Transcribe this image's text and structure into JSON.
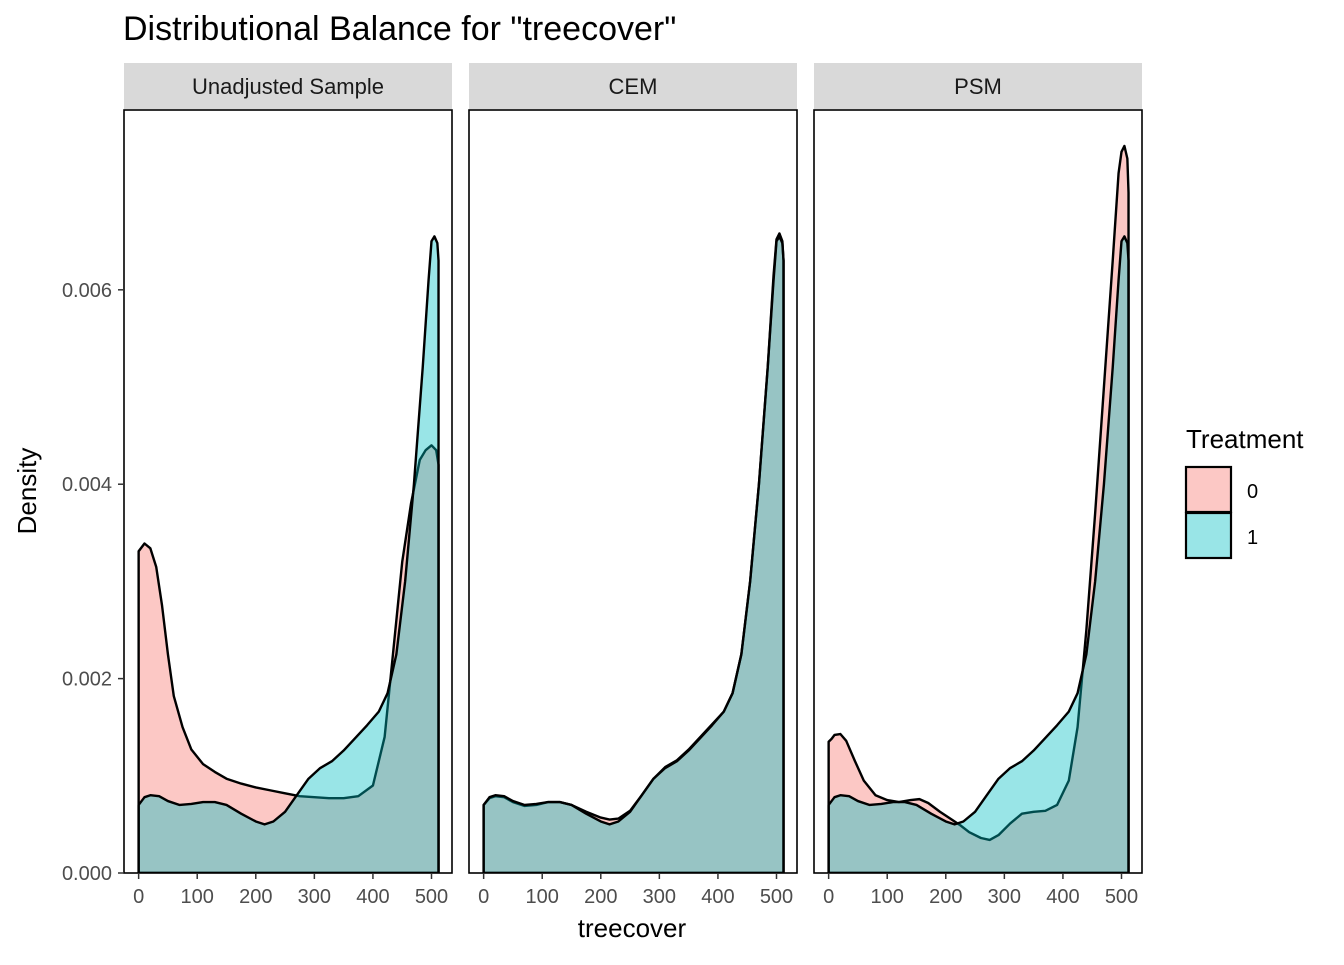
{
  "chart_data": {
    "type": "area",
    "title": "Distributional Balance for \"treecover\"",
    "xlabel": "treecover",
    "ylabel": "Density",
    "xlim": [
      -25,
      535
    ],
    "ylim": [
      0,
      0.00785
    ],
    "x_ticks": [
      0,
      100,
      200,
      300,
      400,
      500
    ],
    "x_tick_labels": [
      "0",
      "100",
      "200",
      "300",
      "400",
      "500"
    ],
    "y_ticks": [
      0,
      0.002,
      0.004,
      0.006
    ],
    "y_tick_labels": [
      "0.000",
      "0.002",
      "0.004",
      "0.006"
    ],
    "grid": false,
    "legend": {
      "title": "Treatment",
      "position": "right",
      "entries": [
        {
          "label": "0",
          "color": "#F8766D"
        },
        {
          "label": "1",
          "color": "#00BFC4"
        }
      ]
    },
    "panels": [
      {
        "label": "Unadjusted Sample",
        "series": [
          {
            "name": "0",
            "color": "#F8766D",
            "points": [
              [
                0,
                0.00331
              ],
              [
                5,
                0.00335
              ],
              [
                10,
                0.00339
              ],
              [
                20,
                0.00334
              ],
              [
                30,
                0.00315
              ],
              [
                40,
                0.00275
              ],
              [
                50,
                0.00225
              ],
              [
                60,
                0.00182
              ],
              [
                75,
                0.0015
              ],
              [
                90,
                0.00127
              ],
              [
                110,
                0.00112
              ],
              [
                130,
                0.00104
              ],
              [
                150,
                0.00097
              ],
              [
                175,
                0.00092
              ],
              [
                200,
                0.00088
              ],
              [
                225,
                0.00085
              ],
              [
                250,
                0.00082
              ],
              [
                275,
                0.00079
              ],
              [
                300,
                0.00078
              ],
              [
                325,
                0.00077
              ],
              [
                350,
                0.00077
              ],
              [
                375,
                0.00079
              ],
              [
                400,
                0.0009
              ],
              [
                420,
                0.0014
              ],
              [
                435,
                0.0023
              ],
              [
                450,
                0.0032
              ],
              [
                465,
                0.0038
              ],
              [
                480,
                0.00425
              ],
              [
                490,
                0.00435
              ],
              [
                500,
                0.0044
              ],
              [
                508,
                0.00435
              ],
              [
                512,
                0.0042
              ]
            ]
          },
          {
            "name": "1",
            "color": "#00BFC4",
            "points": [
              [
                0,
                0.0007
              ],
              [
                10,
                0.00078
              ],
              [
                20,
                0.0008
              ],
              [
                35,
                0.00079
              ],
              [
                50,
                0.00074
              ],
              [
                70,
                0.0007
              ],
              [
                90,
                0.00071
              ],
              [
                110,
                0.00073
              ],
              [
                130,
                0.00073
              ],
              [
                150,
                0.0007
              ],
              [
                175,
                0.00061
              ],
              [
                200,
                0.00053
              ],
              [
                215,
                0.0005
              ],
              [
                230,
                0.00053
              ],
              [
                250,
                0.00063
              ],
              [
                270,
                0.0008
              ],
              [
                290,
                0.00097
              ],
              [
                310,
                0.00108
              ],
              [
                330,
                0.00115
              ],
              [
                350,
                0.00126
              ],
              [
                370,
                0.00139
              ],
              [
                390,
                0.00152
              ],
              [
                410,
                0.00166
              ],
              [
                425,
                0.00185
              ],
              [
                440,
                0.00225
              ],
              [
                455,
                0.003
              ],
              [
                470,
                0.004
              ],
              [
                485,
                0.0052
              ],
              [
                495,
                0.0061
              ],
              [
                500,
                0.0065
              ],
              [
                505,
                0.00655
              ],
              [
                510,
                0.00648
              ],
              [
                512,
                0.0063
              ]
            ]
          }
        ]
      },
      {
        "label": "CEM",
        "series": [
          {
            "name": "0",
            "color": "#F8766D",
            "points": [
              [
                0,
                0.0007
              ],
              [
                10,
                0.00077
              ],
              [
                20,
                0.00079
              ],
              [
                35,
                0.00078
              ],
              [
                50,
                0.00073
              ],
              [
                70,
                0.00069
              ],
              [
                90,
                0.0007
              ],
              [
                110,
                0.00073
              ],
              [
                130,
                0.00073
              ],
              [
                150,
                0.0007
              ],
              [
                175,
                0.00063
              ],
              [
                200,
                0.00057
              ],
              [
                215,
                0.00055
              ],
              [
                230,
                0.00056
              ],
              [
                250,
                0.00064
              ],
              [
                270,
                0.0008
              ],
              [
                290,
                0.00097
              ],
              [
                310,
                0.00109
              ],
              [
                330,
                0.00116
              ],
              [
                350,
                0.00127
              ],
              [
                370,
                0.0014
              ],
              [
                390,
                0.00153
              ],
              [
                410,
                0.00166
              ],
              [
                425,
                0.00185
              ],
              [
                440,
                0.00225
              ],
              [
                455,
                0.003
              ],
              [
                470,
                0.004
              ],
              [
                485,
                0.0052
              ],
              [
                495,
                0.00615
              ],
              [
                500,
                0.00652
              ],
              [
                505,
                0.00658
              ],
              [
                510,
                0.0065
              ],
              [
                512,
                0.0063
              ]
            ]
          },
          {
            "name": "1",
            "color": "#00BFC4",
            "points": [
              [
                0,
                0.0007
              ],
              [
                10,
                0.00078
              ],
              [
                20,
                0.0008
              ],
              [
                35,
                0.00079
              ],
              [
                50,
                0.00074
              ],
              [
                70,
                0.0007
              ],
              [
                90,
                0.00071
              ],
              [
                110,
                0.00073
              ],
              [
                130,
                0.00073
              ],
              [
                150,
                0.0007
              ],
              [
                175,
                0.00061
              ],
              [
                200,
                0.00053
              ],
              [
                215,
                0.0005
              ],
              [
                230,
                0.00053
              ],
              [
                250,
                0.00063
              ],
              [
                270,
                0.0008
              ],
              [
                290,
                0.00097
              ],
              [
                310,
                0.00108
              ],
              [
                330,
                0.00115
              ],
              [
                350,
                0.00126
              ],
              [
                370,
                0.00139
              ],
              [
                390,
                0.00152
              ],
              [
                410,
                0.00166
              ],
              [
                425,
                0.00185
              ],
              [
                440,
                0.00225
              ],
              [
                455,
                0.003
              ],
              [
                470,
                0.004
              ],
              [
                485,
                0.0052
              ],
              [
                495,
                0.0061
              ],
              [
                500,
                0.0065
              ],
              [
                505,
                0.00655
              ],
              [
                510,
                0.00648
              ],
              [
                512,
                0.0063
              ]
            ]
          }
        ]
      },
      {
        "label": "PSM",
        "series": [
          {
            "name": "0",
            "color": "#F8766D",
            "points": [
              [
                0,
                0.00135
              ],
              [
                5,
                0.00138
              ],
              [
                10,
                0.00142
              ],
              [
                20,
                0.00143
              ],
              [
                30,
                0.00136
              ],
              [
                45,
                0.00115
              ],
              [
                60,
                0.00095
              ],
              [
                80,
                0.0008
              ],
              [
                100,
                0.00075
              ],
              [
                120,
                0.00073
              ],
              [
                140,
                0.00075
              ],
              [
                155,
                0.00076
              ],
              [
                170,
                0.00072
              ],
              [
                190,
                0.00063
              ],
              [
                210,
                0.00055
              ],
              [
                225,
                0.00049
              ],
              [
                240,
                0.00042
              ],
              [
                260,
                0.00036
              ],
              [
                275,
                0.00034
              ],
              [
                290,
                0.00039
              ],
              [
                310,
                0.00051
              ],
              [
                330,
                0.00061
              ],
              [
                350,
                0.00063
              ],
              [
                370,
                0.00064
              ],
              [
                390,
                0.0007
              ],
              [
                410,
                0.00095
              ],
              [
                425,
                0.0015
              ],
              [
                440,
                0.0025
              ],
              [
                455,
                0.0037
              ],
              [
                470,
                0.005
              ],
              [
                485,
                0.0063
              ],
              [
                495,
                0.0072
              ],
              [
                500,
                0.00742
              ],
              [
                505,
                0.00748
              ],
              [
                510,
                0.00735
              ],
              [
                512,
                0.007
              ]
            ]
          },
          {
            "name": "1",
            "color": "#00BFC4",
            "points": [
              [
                0,
                0.0007
              ],
              [
                10,
                0.00078
              ],
              [
                20,
                0.0008
              ],
              [
                35,
                0.00079
              ],
              [
                50,
                0.00074
              ],
              [
                70,
                0.0007
              ],
              [
                90,
                0.00071
              ],
              [
                110,
                0.00073
              ],
              [
                130,
                0.00073
              ],
              [
                150,
                0.0007
              ],
              [
                175,
                0.00061
              ],
              [
                200,
                0.00053
              ],
              [
                215,
                0.0005
              ],
              [
                230,
                0.00053
              ],
              [
                250,
                0.00063
              ],
              [
                270,
                0.0008
              ],
              [
                290,
                0.00097
              ],
              [
                310,
                0.00108
              ],
              [
                330,
                0.00115
              ],
              [
                350,
                0.00126
              ],
              [
                370,
                0.00139
              ],
              [
                390,
                0.00152
              ],
              [
                410,
                0.00166
              ],
              [
                425,
                0.00185
              ],
              [
                440,
                0.00225
              ],
              [
                455,
                0.003
              ],
              [
                470,
                0.004
              ],
              [
                485,
                0.0052
              ],
              [
                495,
                0.0061
              ],
              [
                500,
                0.0065
              ],
              [
                505,
                0.00655
              ],
              [
                510,
                0.00648
              ],
              [
                512,
                0.0063
              ]
            ]
          }
        ]
      }
    ]
  }
}
